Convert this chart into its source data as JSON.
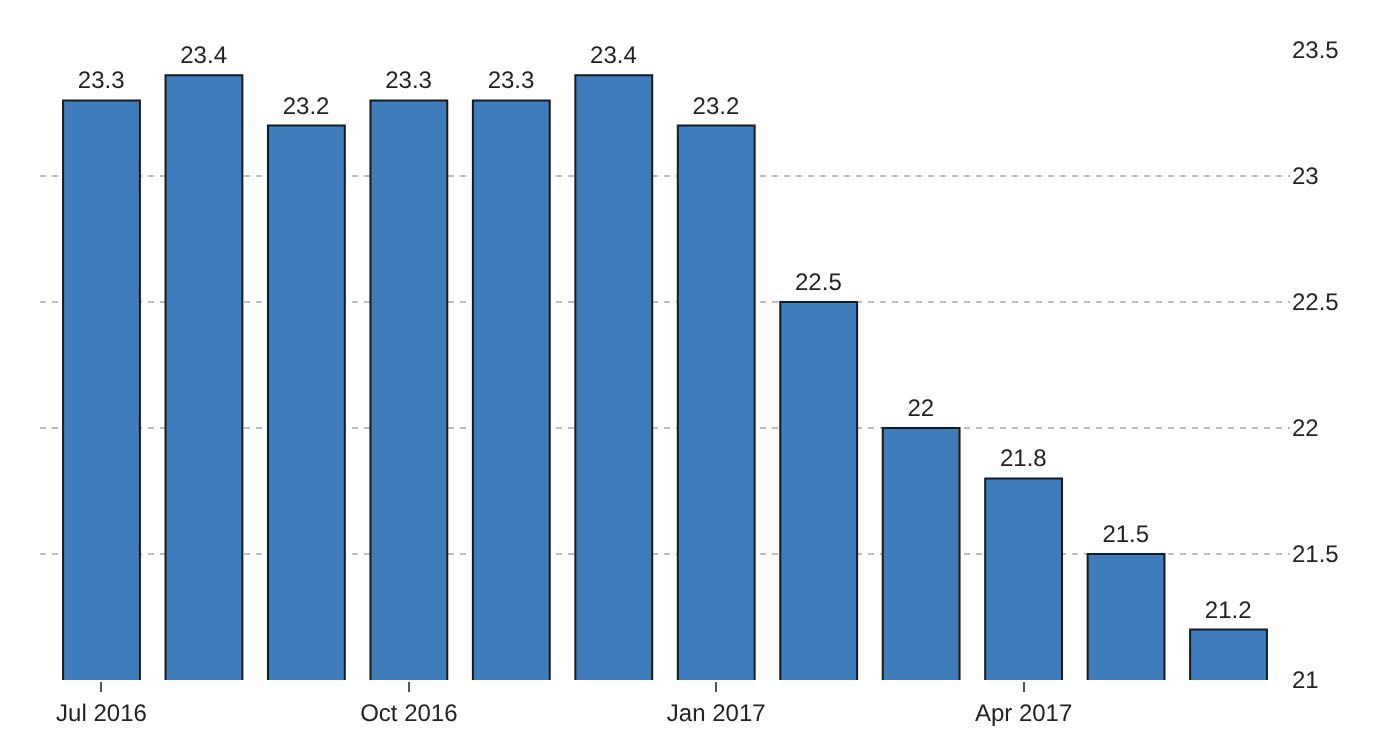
{
  "chart_data": {
    "type": "bar",
    "categories": [
      "Jul 2016",
      null,
      null,
      "Oct 2016",
      null,
      null,
      "Jan 2017",
      null,
      null,
      "Apr 2017",
      null,
      null
    ],
    "values": [
      23.3,
      23.4,
      23.2,
      23.3,
      23.3,
      23.4,
      23.2,
      22.5,
      22,
      21.8,
      21.5,
      21.2
    ],
    "color": "#3f7cbb",
    "ylim": [
      21,
      23.5
    ],
    "yticks": [
      21,
      21.5,
      22,
      22.5,
      23,
      23.5
    ],
    "grid": "y",
    "data_labels": true
  }
}
